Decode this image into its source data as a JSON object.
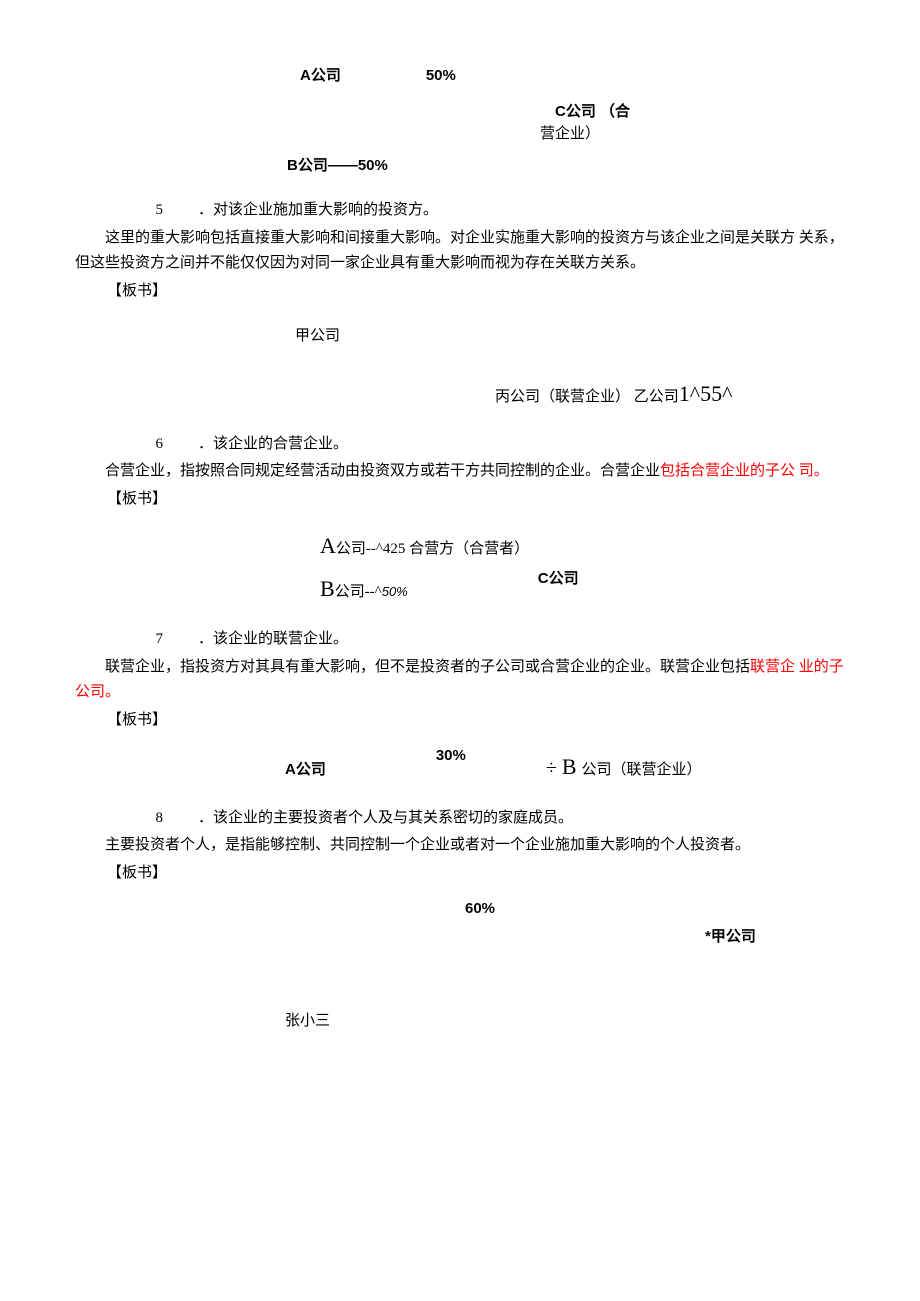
{
  "colors": {
    "text": "#000000",
    "red": "#ff0000",
    "background": "#ffffff"
  },
  "diagram1": {
    "a_label": "A公司",
    "pct50": "50%",
    "c_label": "C公司 （合",
    "c_label2": "营企业）",
    "b_label": "B公司——50%"
  },
  "section5": {
    "num": "5",
    "title": "．对该企业施加重大影响的投资方。",
    "para1": "这里的重大影响包括直接重大影响和间接重大影响。对企业实施重大影响的投资方与该企业之间是关联方   关系，但这些投资方之间并不能仅仅因为对同一家企业具有重大影响而视为存在关联方关系。",
    "banshu": "【板书】"
  },
  "diagram2": {
    "jia": "甲公司",
    "bing_yi": "丙公司（联营企业）  乙公司",
    "formula": "1^55^"
  },
  "section6": {
    "num": "6",
    "title": "．该企业的合营企业。",
    "para_prefix": "合营企业，指按照合同规定经营活动由投资双方或若干方共同控制的企业。合营企业",
    "para_red": "包括合营企业的子公   司。",
    "banshu": "【板书】"
  },
  "diagram3": {
    "a_label": "A",
    "a_suffix": "公司--^425 ",
    "a_extra": "合营方（合营者）",
    "b_label": "B",
    "b_suffix": "公司--^",
    "b_pct": "50%",
    "c_label": "C公司"
  },
  "section7": {
    "num": "7",
    "title": "．该企业的联营企业。",
    "para_prefix": "联营企业，指投资方对其具有重大影响，但不是投资者的子公司或合营企业的企业。联营企业包括",
    "para_red": "联营企   业的子公司。",
    "banshu": "【板书】"
  },
  "diagram4": {
    "a_label": "A公司",
    "pct30": "30%",
    "divide": "÷ ",
    "b_big": "B",
    "b_suffix": "公司（联营企业）"
  },
  "section8": {
    "num": "8",
    "title": "．该企业的主要投资者个人及与其关系密切的家庭成员。",
    "para1": "主要投资者个人，是指能够控制、共同控制一个企业或者对一个企业施加重大影响的个人投资者。",
    "banshu": "【板书】"
  },
  "diagram5": {
    "pct60": "60%",
    "jia": "*甲公司",
    "zhang": "张小三"
  }
}
